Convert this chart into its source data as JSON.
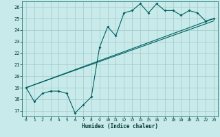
{
  "xlabel": "Humidex (Indice chaleur)",
  "background_color": "#c8eaea",
  "grid_color": "#a0c8c8",
  "line_color": "#006060",
  "xlim": [
    -0.5,
    23.5
  ],
  "ylim": [
    16.5,
    26.5
  ],
  "yticks": [
    17,
    18,
    19,
    20,
    21,
    22,
    23,
    24,
    25,
    26
  ],
  "xticks": [
    0,
    1,
    2,
    3,
    4,
    5,
    6,
    7,
    8,
    9,
    10,
    11,
    12,
    13,
    14,
    15,
    16,
    17,
    18,
    19,
    20,
    21,
    22,
    23
  ],
  "curve_x": [
    0,
    1,
    2,
    3,
    4,
    5,
    6,
    7,
    8,
    9,
    10,
    11,
    12,
    13,
    14,
    15,
    16,
    17,
    18,
    19,
    20,
    21,
    22,
    23
  ],
  "curve_y": [
    19.0,
    17.8,
    18.5,
    18.7,
    18.7,
    18.5,
    16.8,
    17.5,
    18.2,
    22.5,
    24.3,
    23.5,
    25.5,
    25.7,
    26.3,
    25.5,
    26.3,
    25.7,
    25.7,
    25.3,
    25.7,
    25.5,
    24.8,
    25.0
  ],
  "line1_x": [
    0,
    23
  ],
  "line1_y": [
    19.0,
    25.0
  ],
  "line2_x": [
    0,
    23
  ],
  "line2_y": [
    19.0,
    24.8
  ]
}
